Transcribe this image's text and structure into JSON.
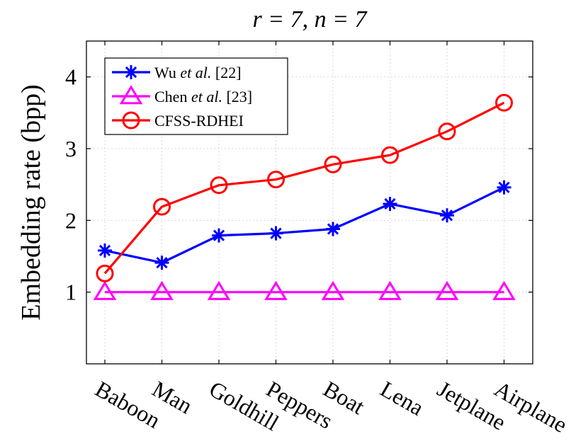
{
  "chart_data": {
    "type": "line",
    "title": "r = 7, n = 7",
    "xlabel": "",
    "ylabel": "Embedding rate (bpp)",
    "ylim": [
      0,
      4.5
    ],
    "yticks": [
      1,
      2,
      3,
      4
    ],
    "grid": true,
    "legend_position": "top-left",
    "categories": [
      "Baboon",
      "Man",
      "Goldhill",
      "Peppers",
      "Boat",
      "Lena",
      "Jetplane",
      "Airplane"
    ],
    "series": [
      {
        "name": "Wu et al. [22]",
        "name_prefix": "Wu ",
        "name_italic": "et al.",
        "name_suffix": " [22]",
        "color": "#0000ff",
        "marker": "asterisk",
        "values": [
          1.58,
          1.41,
          1.79,
          1.82,
          1.88,
          2.23,
          2.07,
          2.46
        ]
      },
      {
        "name": "Chen et al. [23]",
        "name_prefix": "Chen ",
        "name_italic": "et al.",
        "name_suffix": " [23]",
        "color": "#ff00ff",
        "marker": "triangle",
        "values": [
          1.0,
          1.0,
          1.0,
          1.0,
          1.0,
          1.0,
          1.0,
          1.0
        ]
      },
      {
        "name": "CFSS-RDHEI",
        "name_prefix": "CFSS-RDHEI",
        "name_italic": "",
        "name_suffix": "",
        "color": "#ff0000",
        "marker": "circle",
        "values": [
          1.26,
          2.19,
          2.49,
          2.57,
          2.78,
          2.91,
          3.24,
          3.64
        ]
      }
    ]
  }
}
